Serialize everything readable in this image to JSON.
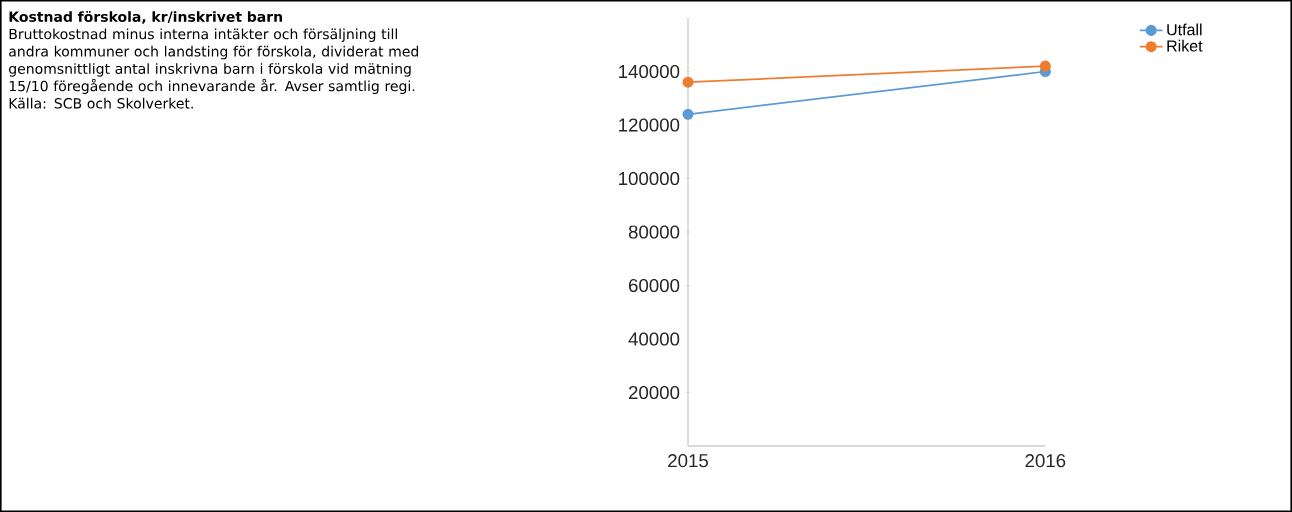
{
  "chart_data": {
    "type": "line",
    "title": "Kostnad förskola, kr/inskrivet barn",
    "subtitle": "Bruttokostnad minus interna intäkter och försäljning till andra kommuner och landsting för förskola, dividerat med genomsnittligt antal inskrivna barn i förskola vid mätning 15/10 föregående och innevarande år. Avser samtlig regi. Källa: SCB och Skolverket.",
    "x": [
      2015,
      2016
    ],
    "xlim": [
      2015,
      2016
    ],
    "xticks": [
      2015,
      2016
    ],
    "ylim": [
      0,
      160000
    ],
    "yticks": [
      20000,
      40000,
      60000,
      80000,
      100000,
      120000,
      140000
    ],
    "series": [
      {
        "name": "Utfall",
        "color": "#5b9bd5",
        "values": [
          124000,
          140000
        ]
      },
      {
        "name": "Riket",
        "color": "#ed7d31",
        "values": [
          136000,
          142000
        ]
      }
    ],
    "legend": "top right",
    "marker": "circle"
  }
}
